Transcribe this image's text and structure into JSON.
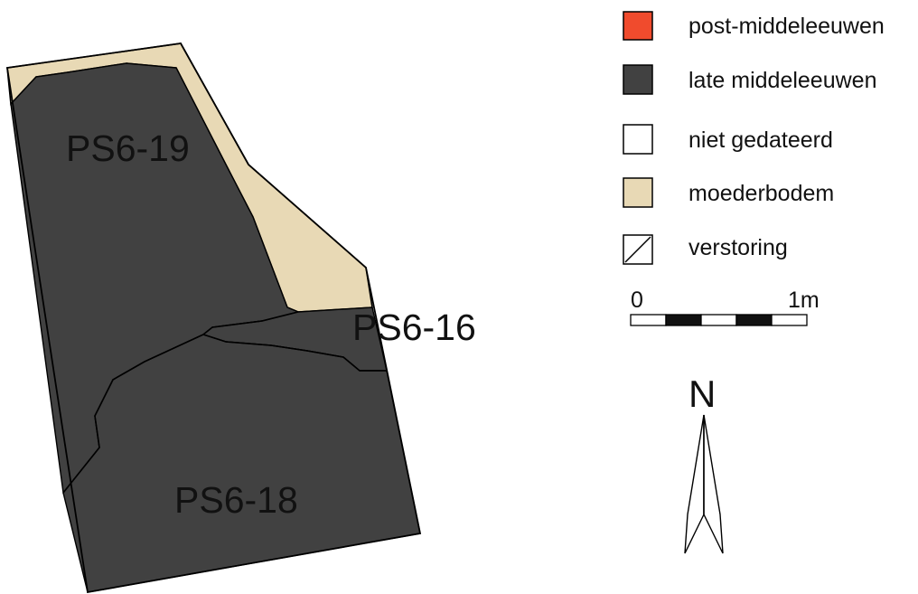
{
  "colors": {
    "post_middeleeuwen": "#f04b2d",
    "late_middeleeuwen": "#414141",
    "niet_gedateerd": "#ffffff",
    "moederbodem": "#e8d9b5",
    "outline": "#000000"
  },
  "features": {
    "ps6_19": "PS6-19",
    "ps6_16": "PS6-16",
    "ps6_18": "PS6-18"
  },
  "legend": {
    "items": [
      {
        "label": "post-middeleeuwen",
        "color": "#f04b2d",
        "swatch": "fill"
      },
      {
        "label": "late middeleeuwen",
        "color": "#414141",
        "swatch": "fill"
      },
      {
        "label": "niet gedateerd",
        "color": "#ffffff",
        "swatch": "fill"
      },
      {
        "label": "moederbodem",
        "color": "#e8d9b5",
        "swatch": "fill"
      },
      {
        "label": "verstoring",
        "color": "#ffffff",
        "swatch": "hatch"
      }
    ]
  },
  "scale_bar": {
    "start_label": "0",
    "end_label": "1m"
  },
  "north_arrow": {
    "label": "N"
  }
}
